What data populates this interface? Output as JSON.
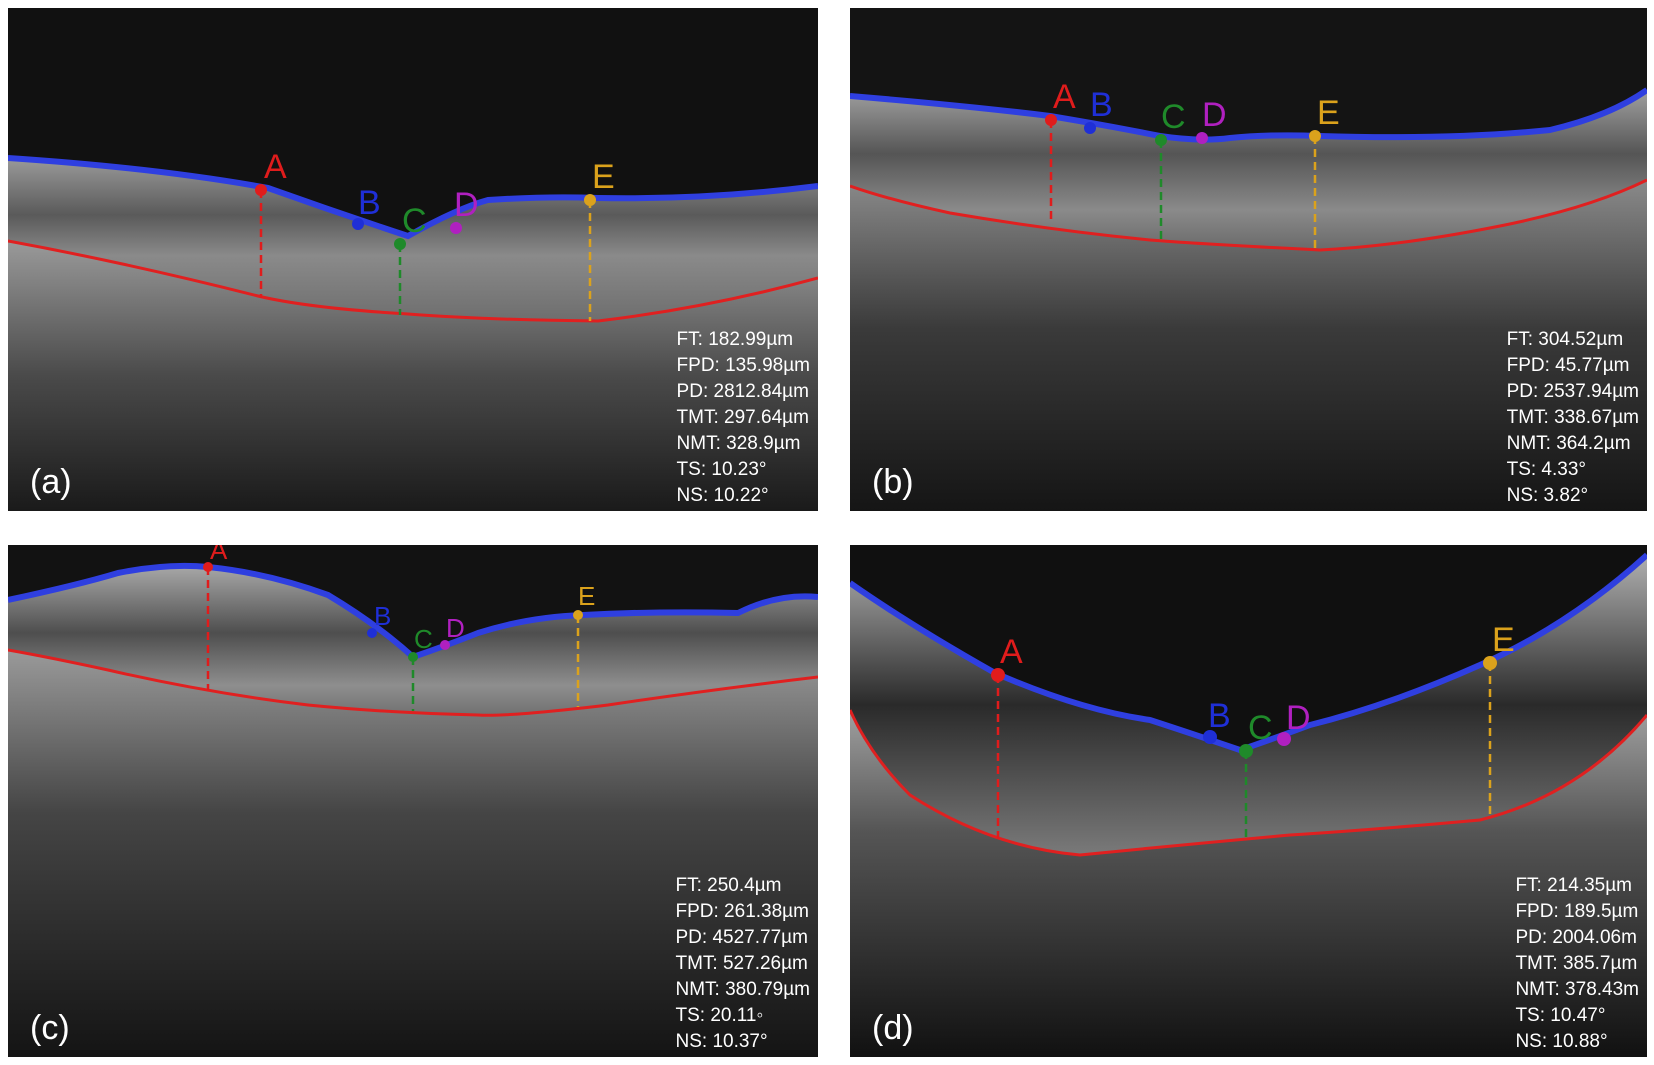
{
  "colors": {
    "inner_boundary": "#2f3fe0",
    "outer_boundary": "#e02020",
    "point_A": "#e01c1c",
    "point_B": "#1f2fd6",
    "point_C": "#1f8a2a",
    "point_D": "#b020c0",
    "point_E": "#dba21c",
    "metric_text": "#ffffff"
  },
  "point_names": [
    "A",
    "B",
    "C",
    "D",
    "E"
  ],
  "panels": [
    {
      "label": "(a)",
      "metrics": [
        "FT: 182.99µm",
        "FPD: 135.98µm",
        "PD: 2812.84µm",
        "TMT: 297.64µm",
        "NMT: 328.9µm",
        "TS: 10.23°",
        "NS: 10.22°"
      ]
    },
    {
      "label": "(b)",
      "metrics": [
        "FT: 304.52µm",
        "FPD: 45.77µm",
        "PD: 2537.94µm",
        "TMT: 338.67µm",
        "NMT: 364.2µm",
        "TS: 4.33°",
        "NS: 3.82°"
      ]
    },
    {
      "label": "(c)",
      "metrics": [
        "FT: 250.4µm",
        "FPD: 261.38µm",
        "PD: 4527.77µm",
        "TMT: 527.26µm",
        "NMT: 380.79µm",
        "TS: 20.11◦",
        "NS: 10.37°"
      ]
    },
    {
      "label": "(d)",
      "metrics": [
        "FT: 214.35µm",
        "FPD: 189.5µm",
        "PD: 2004.06m",
        "TMT: 385.7µm",
        "NMT: 378.43m",
        "TS: 10.47°",
        "NS: 10.88°"
      ]
    }
  ]
}
